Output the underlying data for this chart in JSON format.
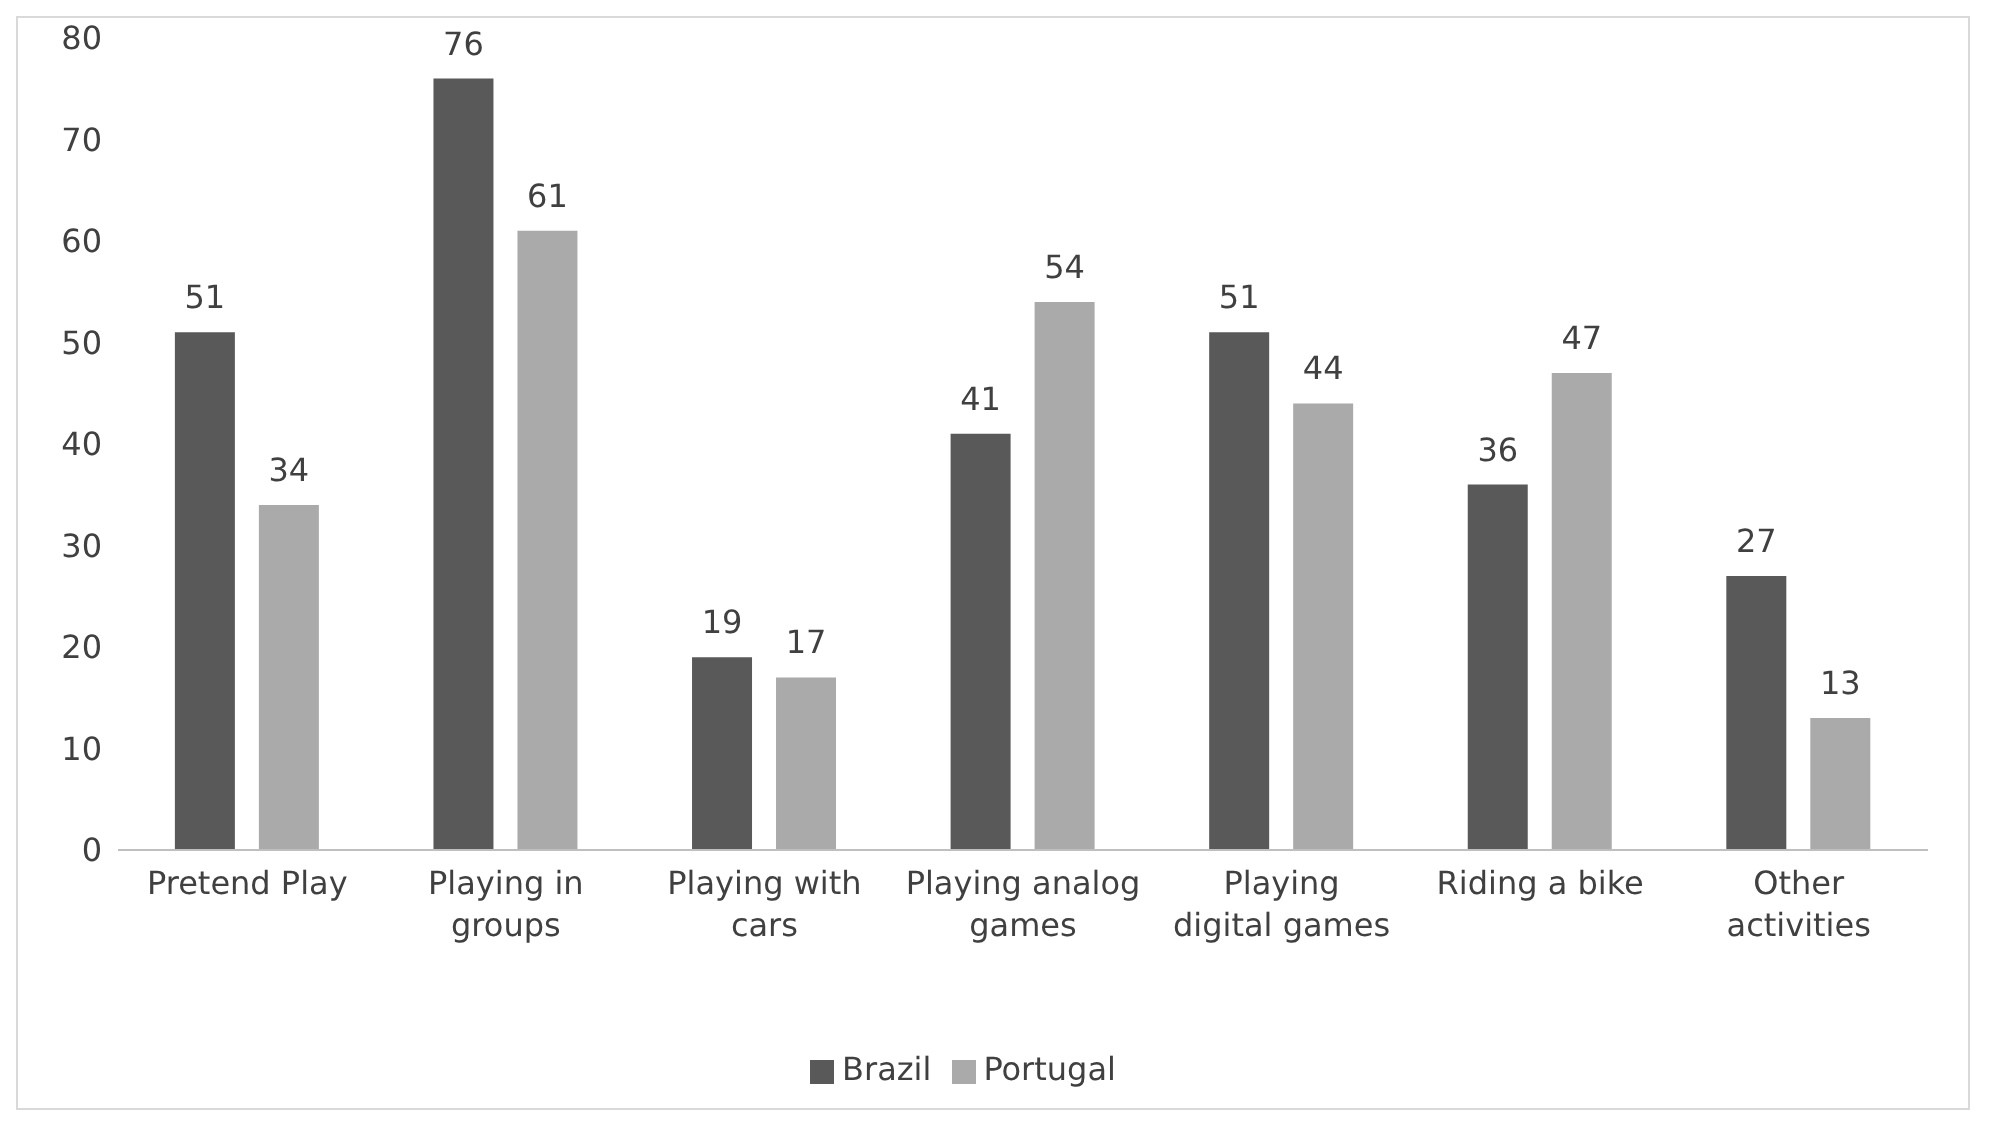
{
  "chart_data": {
    "type": "bar",
    "categories": [
      "Pretend Play",
      "Playing in groups",
      "Playing with cars",
      "Playing analog games",
      "Playing digital games",
      "Riding a bike",
      "Other activities"
    ],
    "series": [
      {
        "name": "Brazil",
        "color": "#595959",
        "values": [
          51,
          76,
          19,
          41,
          51,
          36,
          27
        ]
      },
      {
        "name": "Portugal",
        "color": "#aaaaaa",
        "values": [
          34,
          61,
          17,
          54,
          44,
          47,
          13
        ]
      }
    ],
    "ylim": [
      0,
      80
    ],
    "yticks": [
      0,
      10,
      20,
      30,
      40,
      50,
      60,
      70,
      80
    ],
    "grid": false,
    "legend": "bottom",
    "data_labels": true
  }
}
